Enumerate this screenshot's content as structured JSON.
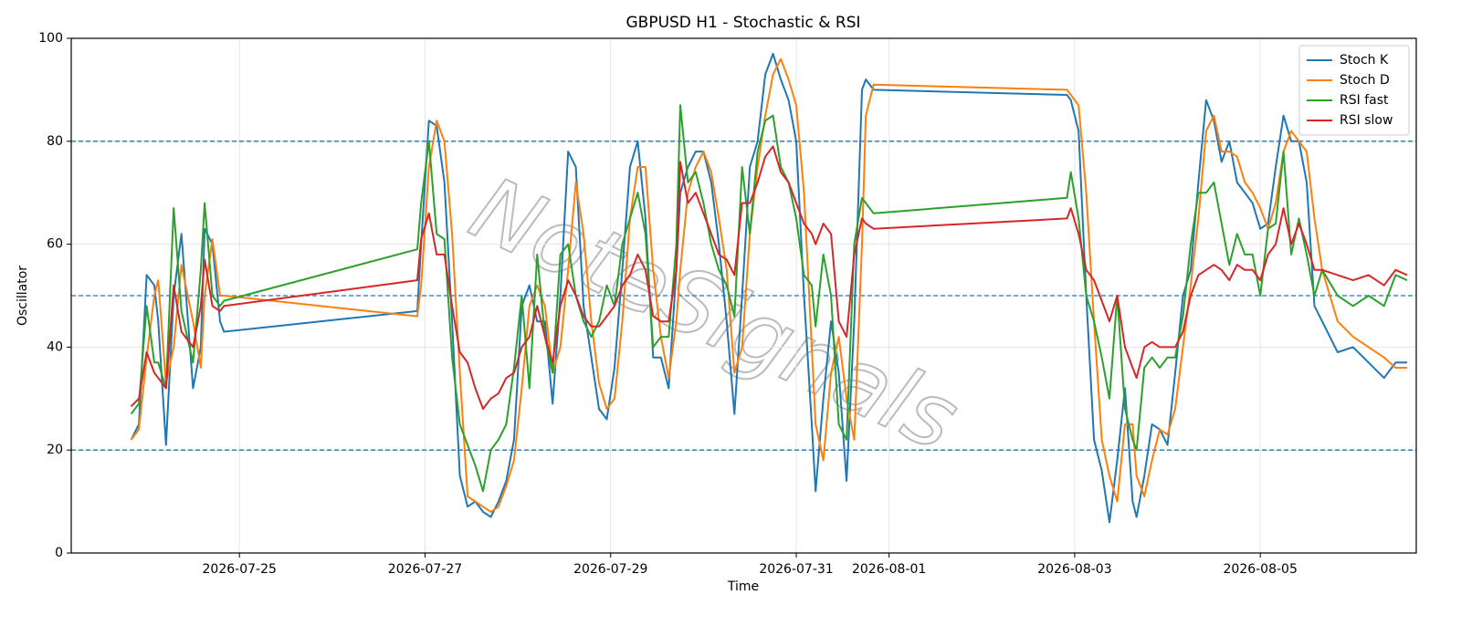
{
  "chart_data": {
    "type": "line",
    "title": "GBPUSD H1 - Stochastic & RSI",
    "xlabel": "Time",
    "ylabel": "Oscillator",
    "watermark": "NoteSignals",
    "x": [
      "2026-07-23T20:00",
      "2026-07-23T22:00",
      "2026-07-24T00:00",
      "2026-07-24T02:00",
      "2026-07-24T03:00",
      "2026-07-24T05:00",
      "2026-07-24T07:00",
      "2026-07-24T09:00",
      "2026-07-24T12:00",
      "2026-07-24T14:00",
      "2026-07-24T15:00",
      "2026-07-24T17:00",
      "2026-07-24T19:00",
      "2026-07-24T20:00",
      "2026-07-26T22:00",
      "2026-07-26T23:00",
      "2026-07-27T01:00",
      "2026-07-27T03:00",
      "2026-07-27T05:00",
      "2026-07-27T07:00",
      "2026-07-27T09:00",
      "2026-07-27T11:00",
      "2026-07-27T13:00",
      "2026-07-27T15:00",
      "2026-07-27T17:00",
      "2026-07-27T19:00",
      "2026-07-27T21:00",
      "2026-07-27T23:00",
      "2026-07-28T01:00",
      "2026-07-28T03:00",
      "2026-07-28T05:00",
      "2026-07-28T07:00",
      "2026-07-28T09:00",
      "2026-07-28T11:00",
      "2026-07-28T13:00",
      "2026-07-28T15:00",
      "2026-07-28T17:00",
      "2026-07-28T19:00",
      "2026-07-28T21:00",
      "2026-07-28T23:00",
      "2026-07-29T01:00",
      "2026-07-29T03:00",
      "2026-07-29T05:00",
      "2026-07-29T07:00",
      "2026-07-29T09:00",
      "2026-07-29T11:00",
      "2026-07-29T13:00",
      "2026-07-29T15:00",
      "2026-07-29T17:00",
      "2026-07-29T18:00",
      "2026-07-29T20:00",
      "2026-07-29T22:00",
      "2026-07-30T00:00",
      "2026-07-30T02:00",
      "2026-07-30T04:00",
      "2026-07-30T06:00",
      "2026-07-30T08:00",
      "2026-07-30T10:00",
      "2026-07-30T12:00",
      "2026-07-30T14:00",
      "2026-07-30T16:00",
      "2026-07-30T18:00",
      "2026-07-30T20:00",
      "2026-07-30T22:00",
      "2026-07-31T00:00",
      "2026-07-31T02:00",
      "2026-07-31T04:00",
      "2026-07-31T05:00",
      "2026-07-31T07:00",
      "2026-07-31T09:00",
      "2026-07-31T11:00",
      "2026-07-31T13:00",
      "2026-07-31T15:00",
      "2026-07-31T17:00",
      "2026-07-31T18:00",
      "2026-07-31T20:00",
      "2026-08-02T22:00",
      "2026-08-02T23:00",
      "2026-08-03T01:00",
      "2026-08-03T03:00",
      "2026-08-03T05:00",
      "2026-08-03T07:00",
      "2026-08-03T09:00",
      "2026-08-03T11:00",
      "2026-08-03T13:00",
      "2026-08-03T15:00",
      "2026-08-03T16:00",
      "2026-08-03T18:00",
      "2026-08-03T20:00",
      "2026-08-03T22:00",
      "2026-08-04T00:00",
      "2026-08-04T02:00",
      "2026-08-04T04:00",
      "2026-08-04T06:00",
      "2026-08-04T08:00",
      "2026-08-04T10:00",
      "2026-08-04T12:00",
      "2026-08-04T14:00",
      "2026-08-04T16:00",
      "2026-08-04T18:00",
      "2026-08-04T20:00",
      "2026-08-04T22:00",
      "2026-08-05T00:00",
      "2026-08-05T02:00",
      "2026-08-05T04:00",
      "2026-08-05T06:00",
      "2026-08-05T08:00",
      "2026-08-05T10:00",
      "2026-08-05T12:00",
      "2026-08-05T14:00",
      "2026-08-05T16:00",
      "2026-08-05T20:00",
      "2026-08-06T00:00",
      "2026-08-06T04:00",
      "2026-08-06T08:00",
      "2026-08-06T11:00",
      "2026-08-06T14:00"
    ],
    "series": [
      {
        "name": "Stoch K",
        "color": "#1f77b4",
        "values": [
          22,
          25,
          54,
          52,
          45,
          21,
          50,
          62,
          32,
          40,
          63,
          60,
          45,
          43,
          47,
          60,
          84,
          83,
          72,
          45,
          15,
          9,
          10,
          8,
          7,
          10,
          14,
          22,
          48,
          52,
          45,
          45,
          29,
          50,
          78,
          75,
          48,
          38,
          28,
          26,
          36,
          55,
          75,
          80,
          65,
          38,
          38,
          32,
          55,
          70,
          75,
          78,
          78,
          72,
          60,
          45,
          27,
          50,
          75,
          80,
          93,
          97,
          92,
          88,
          80,
          50,
          25,
          12,
          30,
          45,
          35,
          14,
          45,
          90,
          92,
          90,
          89,
          88,
          82,
          50,
          22,
          16,
          6,
          18,
          32,
          10,
          7,
          15,
          25,
          24,
          21,
          35,
          50,
          55,
          72,
          88,
          84,
          76,
          80,
          72,
          70,
          68,
          63,
          64,
          75,
          85,
          80,
          80,
          72,
          48,
          45,
          39,
          40,
          37,
          34,
          37,
          37
        ]
      },
      {
        "name": "Stoch D",
        "color": "#ff7f0e",
        "values": [
          22,
          24,
          38,
          50,
          53,
          33,
          40,
          56,
          45,
          36,
          50,
          61,
          50,
          50,
          46,
          52,
          75,
          84,
          80,
          62,
          35,
          11,
          10,
          9,
          8,
          9,
          13,
          18,
          32,
          48,
          52,
          48,
          35,
          40,
          55,
          72,
          62,
          45,
          33,
          28,
          30,
          45,
          65,
          75,
          75,
          55,
          42,
          34,
          45,
          55,
          70,
          75,
          78,
          74,
          65,
          55,
          35,
          40,
          62,
          75,
          85,
          93,
          96,
          92,
          87,
          70,
          40,
          25,
          18,
          35,
          42,
          30,
          22,
          60,
          85,
          91,
          90,
          89,
          87,
          70,
          45,
          22,
          15,
          10,
          25,
          25,
          15,
          11,
          18,
          24,
          23,
          28,
          40,
          52,
          65,
          82,
          85,
          78,
          78,
          77,
          72,
          70,
          67,
          63,
          68,
          78,
          82,
          80,
          78,
          65,
          55,
          45,
          42,
          40,
          38,
          36,
          36
        ]
      },
      {
        "name": "RSI fast",
        "color": "#2ca02c",
        "values": [
          27,
          29,
          48,
          37,
          37,
          32,
          67,
          47,
          37,
          55,
          68,
          50,
          48,
          49,
          59,
          68,
          80,
          62,
          61,
          38,
          25,
          21,
          17,
          12,
          20,
          22,
          25,
          36,
          50,
          32,
          58,
          42,
          35,
          58,
          60,
          50,
          45,
          42,
          45,
          52,
          48,
          60,
          65,
          70,
          62,
          40,
          42,
          42,
          60,
          87,
          72,
          74,
          68,
          60,
          55,
          52,
          46,
          75,
          62,
          78,
          84,
          85,
          75,
          72,
          65,
          54,
          52,
          44,
          58,
          50,
          25,
          22,
          60,
          69,
          68,
          66,
          69,
          74,
          65,
          50,
          45,
          38,
          30,
          50,
          28,
          22,
          20,
          36,
          38,
          36,
          38,
          38,
          46,
          60,
          70,
          70,
          72,
          64,
          56,
          62,
          58,
          58,
          50,
          63,
          64,
          78,
          58,
          65,
          58,
          50,
          55,
          50,
          48,
          50,
          48,
          54,
          53
        ]
      },
      {
        "name": "RSI slow",
        "color": "#d62728",
        "values": [
          28.5,
          30,
          39,
          35,
          34,
          32,
          52,
          43,
          40,
          48,
          57,
          48,
          47,
          48,
          53,
          61,
          66,
          58,
          58,
          48,
          39,
          37,
          32,
          28,
          30,
          31,
          34,
          35,
          40,
          42,
          48,
          42,
          37,
          48,
          53,
          50,
          46,
          44,
          44,
          46,
          48,
          52,
          54,
          58,
          55,
          46,
          45,
          45,
          55,
          76,
          68,
          70,
          66,
          62,
          58,
          57,
          54,
          68,
          68,
          72,
          77,
          79,
          74,
          72,
          68,
          64,
          62,
          60,
          64,
          62,
          45,
          42,
          58,
          65,
          64,
          63,
          65,
          67,
          62,
          55,
          53,
          49,
          45,
          50,
          40,
          36,
          34,
          40,
          41,
          40,
          40,
          40,
          43,
          50,
          54,
          55,
          56,
          55,
          53,
          56,
          55,
          55,
          53,
          58,
          60,
          67,
          60,
          64,
          60,
          55,
          55,
          54,
          53,
          54,
          52,
          55,
          54
        ]
      }
    ],
    "xlim": [
      "2026-07-23T04:30",
      "2026-08-06T16:20"
    ],
    "xticks": [
      "2026-07-25",
      "2026-07-27",
      "2026-07-29",
      "2026-07-31",
      "2026-08-01",
      "2026-08-03",
      "2026-08-05"
    ],
    "ylim": [
      0,
      100
    ],
    "yticks": [
      0,
      20,
      40,
      60,
      80,
      100
    ],
    "hlines": [
      20,
      50,
      80
    ],
    "hline_color": "#1f77b4",
    "grid": true,
    "legend": "upper right"
  }
}
